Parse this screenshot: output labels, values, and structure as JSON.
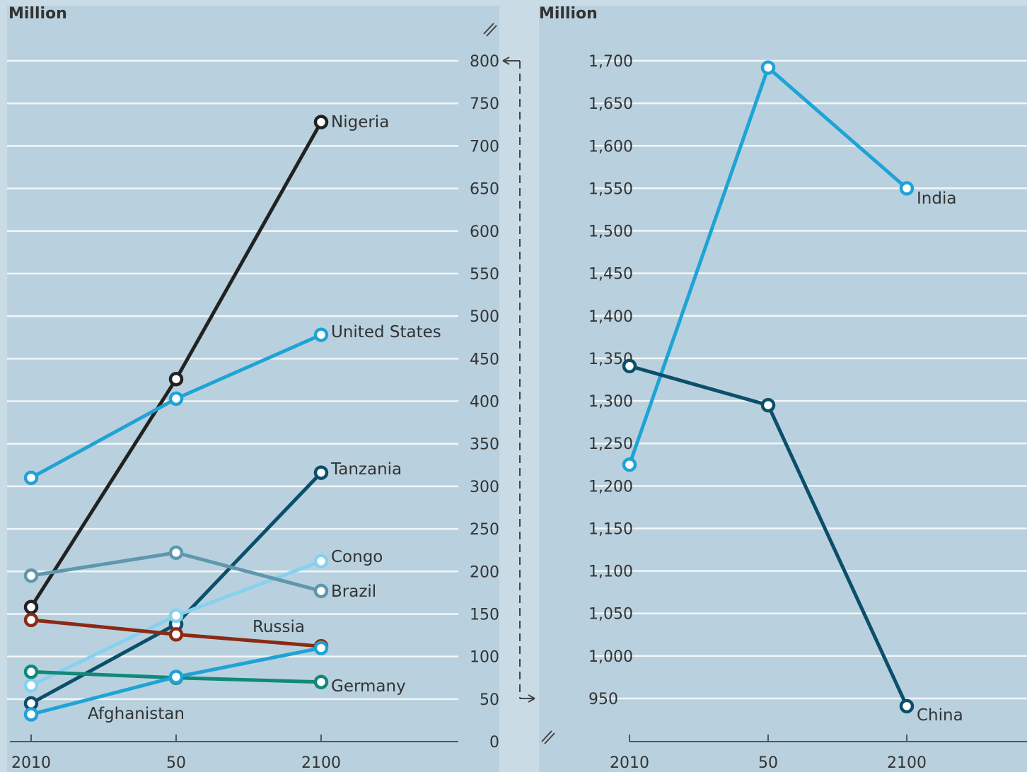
{
  "chart_data": [
    {
      "type": "line",
      "unit_label": "Million",
      "x": [
        "2010",
        "50",
        "2100"
      ],
      "ylim": [
        0,
        800
      ],
      "yticks": [
        "0",
        "50",
        "100",
        "150",
        "200",
        "250",
        "300",
        "350",
        "400",
        "450",
        "500",
        "550",
        "600",
        "650",
        "700",
        "750",
        "800"
      ],
      "grid": true,
      "series": [
        {
          "name": "Nigeria",
          "color": "#222222",
          "values": [
            158,
            426,
            728
          ]
        },
        {
          "name": "United States",
          "color": "#1fa3d6",
          "values": [
            310,
            403,
            478
          ]
        },
        {
          "name": "Tanzania",
          "color": "#0b4f6b",
          "values": [
            45,
            138,
            316
          ]
        },
        {
          "name": "Congo",
          "color": "#86d1f0",
          "values": [
            66,
            148,
            212
          ]
        },
        {
          "name": "Brazil",
          "color": "#5f97ad",
          "values": [
            195,
            222,
            177
          ]
        },
        {
          "name": "Russia",
          "color": "#8b2a14",
          "values": [
            143,
            126,
            112
          ]
        },
        {
          "name": "Germany",
          "color": "#11897a",
          "values": [
            82,
            75,
            70
          ]
        },
        {
          "name": "Afghanistan",
          "color": "#1fa3d6",
          "values": [
            32,
            76,
            110
          ]
        }
      ]
    },
    {
      "type": "line",
      "unit_label": "Million",
      "x": [
        "2010",
        "50",
        "2100"
      ],
      "ylim": [
        950,
        1700
      ],
      "yticks": [
        "950",
        "1,000",
        "1,050",
        "1,100",
        "1,150",
        "1,200",
        "1,250",
        "1,300",
        "1,350",
        "1,400",
        "1,450",
        "1,500",
        "1,550",
        "1,600",
        "1,650",
        "1,700"
      ],
      "grid": true,
      "series": [
        {
          "name": "India",
          "color": "#1fa3d6",
          "values": [
            1225,
            1692,
            1550
          ]
        },
        {
          "name": "China",
          "color": "#0b4f6b",
          "values": [
            1341,
            1295,
            941
          ]
        }
      ]
    }
  ]
}
